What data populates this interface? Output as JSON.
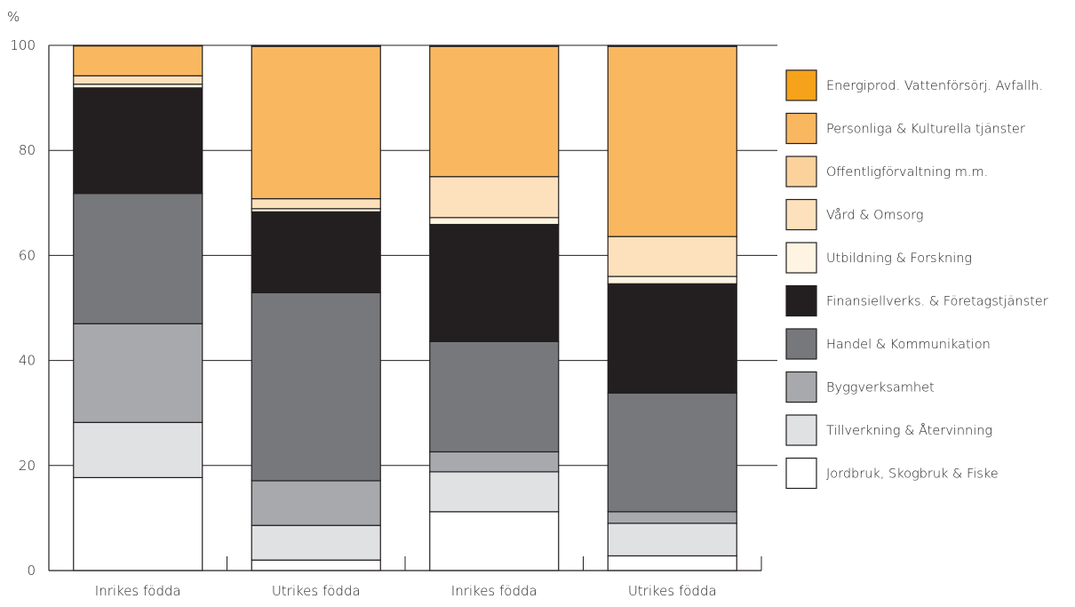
{
  "chart_data": {
    "type": "bar",
    "stacked": true,
    "ylabel": "%",
    "ylim": [
      0,
      100
    ],
    "yticks": [
      0,
      20,
      40,
      60,
      80,
      100
    ],
    "grid": true,
    "legend_position": "right",
    "categories": [
      "Inrikes födda",
      "Utrikes födda",
      "Inrikes födda",
      "Utrikes födda"
    ],
    "series": [
      {
        "name": "Jordbruk, Skogbruk & Fiske",
        "color": "#ffffff",
        "values": [
          17.7,
          2.0,
          11.2,
          2.8
        ]
      },
      {
        "name": "Tillverkning & Återvinning",
        "color": "#e0e1e3",
        "values": [
          10.5,
          6.6,
          7.6,
          6.2
        ]
      },
      {
        "name": "Byggverksamhet",
        "color": "#a7a9ac",
        "values": [
          18.8,
          8.5,
          3.8,
          2.2
        ]
      },
      {
        "name": "Handel & Kommunikation",
        "color": "#77787b",
        "values": [
          24.8,
          35.8,
          21.0,
          22.6
        ]
      },
      {
        "name": "Finansiellverks. & Företagstjänster",
        "color": "#231f20",
        "values": [
          20.1,
          15.4,
          22.3,
          20.8
        ]
      },
      {
        "name": "Utbildning & Forskning",
        "color": "#fff4e1",
        "values": [
          0.7,
          0.6,
          1.3,
          1.4
        ]
      },
      {
        "name": "Vård & Omsorg",
        "color": "#fde1bc",
        "values": [
          1.6,
          1.9,
          7.8,
          7.6
        ]
      },
      {
        "name": "Offentligförvaltning m.m.",
        "color": "#fcd29c",
        "values": [
          0.0,
          0.0,
          0.0,
          0.0
        ]
      },
      {
        "name": "Personliga & Kulturella tjänster",
        "color": "#f9b860",
        "values": [
          5.7,
          29.0,
          24.8,
          36.2
        ]
      },
      {
        "name": "Energiprod. Vattenförsörj. Avfallh.",
        "color": "#f7a21b",
        "values": [
          0.1,
          0.2,
          0.2,
          0.2
        ]
      }
    ]
  }
}
